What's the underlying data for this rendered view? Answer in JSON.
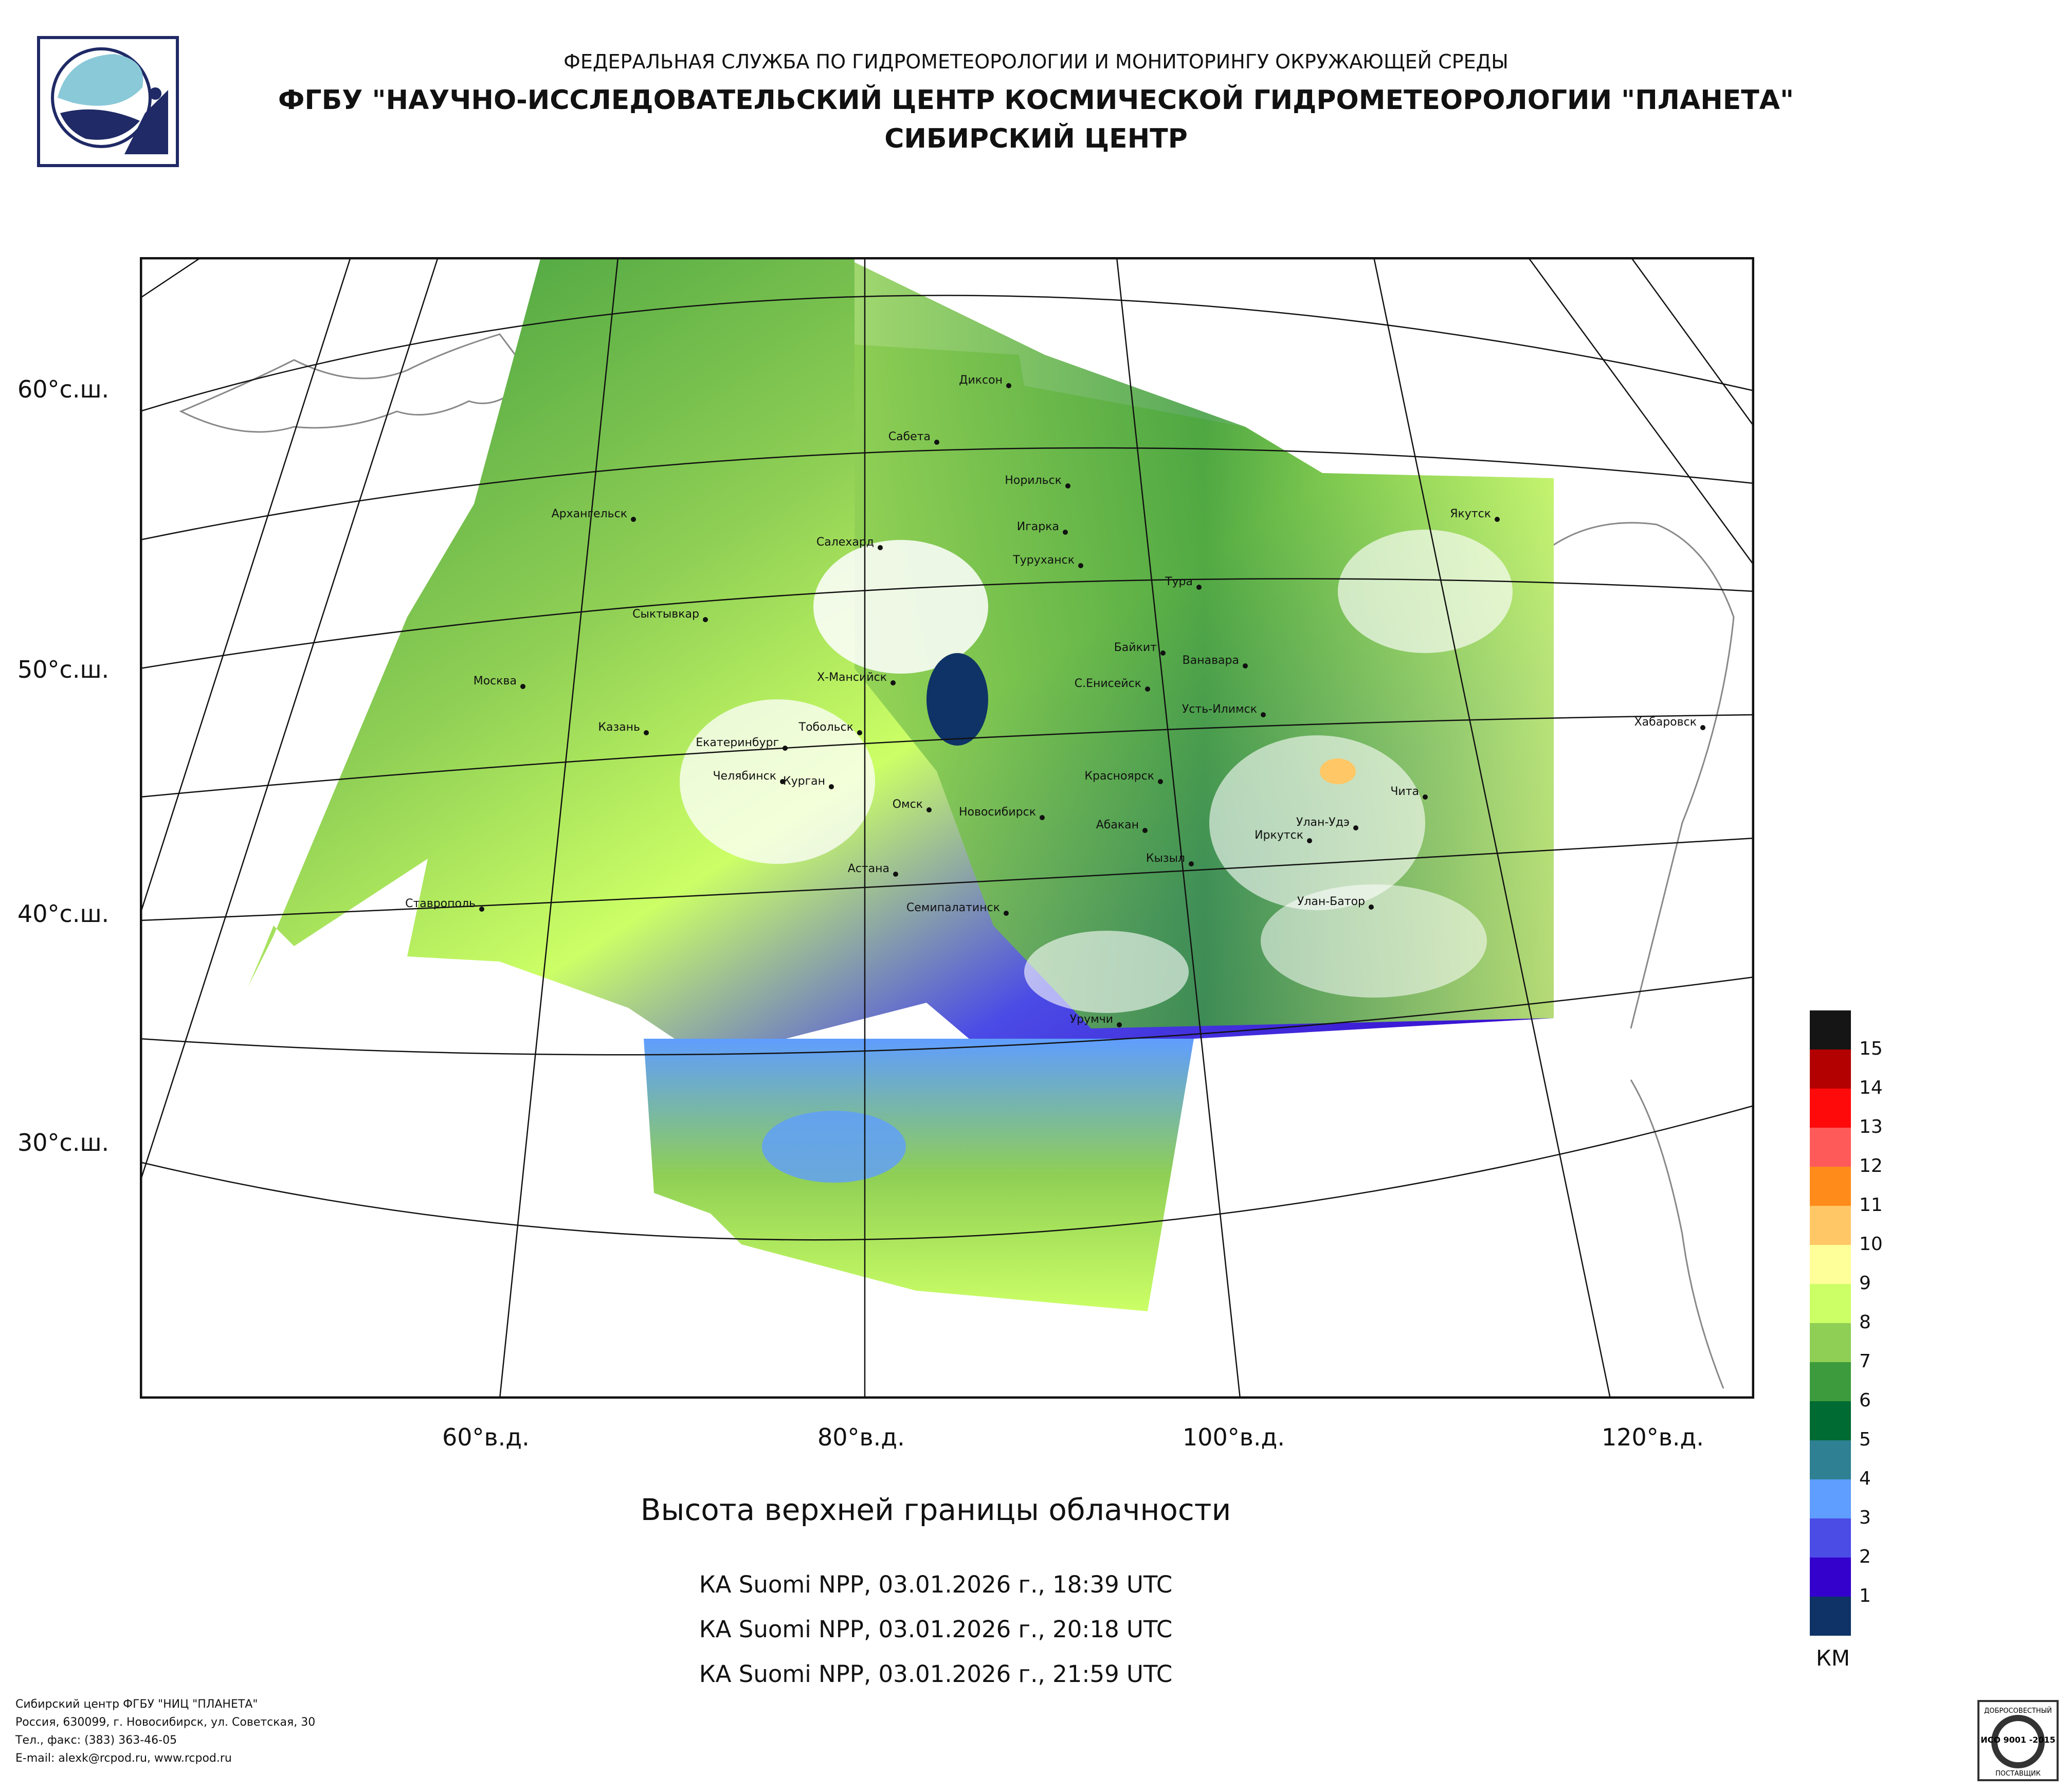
{
  "header": {
    "line1": "ФЕДЕРАЛЬНАЯ СЛУЖБА ПО ГИДРОМЕТЕОРОЛОГИИ И МОНИТОРИНГУ ОКРУЖАЮЩЕЙ СРЕДЫ",
    "line2": "ФГБУ \"НАУЧНО-ИССЛЕДОВАТЕЛЬСКИЙ ЦЕНТР КОСМИЧЕСКОЙ ГИДРОМЕТЕОРОЛОГИИ \"ПЛАНЕТА\"",
    "line3": "СИБИРСКИЙ ЦЕНТР"
  },
  "map": {
    "title": "Высота верхней границы облачности",
    "passes": [
      "КА Suomi NPP, 03.01.2026 г., 18:39 UTC",
      "КА Suomi NPP, 03.01.2026 г., 20:18 UTC",
      "КА Suomi NPP, 03.01.2026 г., 21:59 UTC"
    ],
    "lat_labels": [
      "60°с.ш.",
      "50°с.ш.",
      "40°с.ш.",
      "30°с.ш."
    ],
    "lon_labels": [
      "60°в.д.",
      "80°в.д.",
      "100°в.д.",
      "120°в.д."
    ],
    "cities": [
      "Диксон",
      "Сабета",
      "Норильск",
      "Архангельск",
      "Салехард",
      "Игарка",
      "Туруханск",
      "Якутск",
      "Тура",
      "Сыктывкар",
      "Байкит",
      "Ванавара",
      "Москва",
      "Х-Мансийск",
      "С.Енисейск",
      "Усть-Илимск",
      "Хабаровск",
      "Казань",
      "Тобольск",
      "Екатеринбург",
      "Челябинск",
      "Курган",
      "Красноярск",
      "Чита",
      "Омск",
      "Новосибирск",
      "Абакан",
      "Улан-Удэ",
      "Иркутск",
      "Кызыл",
      "Астана",
      "Ставрополь",
      "Семипалатинск",
      "Улан-Батор",
      "Урумчи"
    ]
  },
  "legend": {
    "unit": "КМ",
    "levels": [
      {
        "label": "15",
        "color": "#151515"
      },
      {
        "label": "14",
        "color": "#b30000"
      },
      {
        "label": "13",
        "color": "#ff0a0a"
      },
      {
        "label": "12",
        "color": "#ff5a5a"
      },
      {
        "label": "11",
        "color": "#ff8c1a"
      },
      {
        "label": "10",
        "color": "#ffc766"
      },
      {
        "label": "9",
        "color": "#ffff99"
      },
      {
        "label": "8",
        "color": "#ccff66"
      },
      {
        "label": "7",
        "color": "#8fcf55"
      },
      {
        "label": "6",
        "color": "#3d9b3d"
      },
      {
        "label": "5",
        "color": "#006b32"
      },
      {
        "label": "4",
        "color": "#2e8092"
      },
      {
        "label": "3",
        "color": "#5f9dff"
      },
      {
        "label": "2",
        "color": "#4b4be6"
      },
      {
        "label": "1",
        "color": "#3300cc"
      },
      {
        "label": "",
        "color": "#0f3366"
      }
    ]
  },
  "footer": {
    "line1": "Сибирский центр ФГБУ \"НИЦ \"ПЛАНЕТА\"",
    "line2": "Россия, 630099, г. Новосибирск, ул. Советская, 30",
    "line3": "Тел., факс: (383) 363-46-05",
    "line4": "E-mail: alexk@rcpod.ru, www.rcpod.ru"
  },
  "certificate": {
    "top_text": "ДОБРОСОВЕСТНЫЙ",
    "standard": "ИСО 9001 -2015",
    "bottom_text": "ПОСТАВЩИК"
  }
}
